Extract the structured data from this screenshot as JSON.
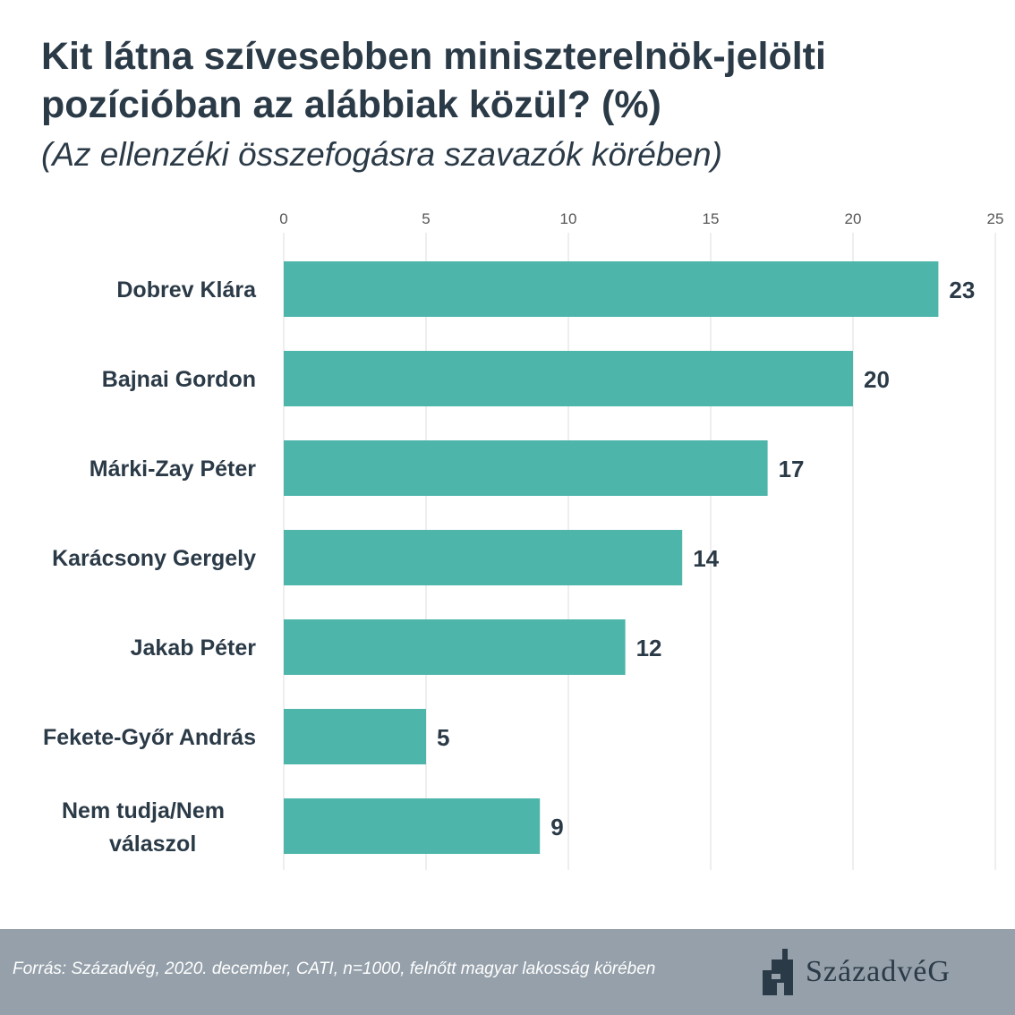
{
  "title": "Kit látna szívesebben miniszterelnök-jelölti pozícióban az alábbiak közül? (%)",
  "subtitle": "(Az ellenzéki összefogásra szavazók körében)",
  "footer": {
    "source": "Forrás: Századvég, 2020. december, CATI, n=1000, felnőtt magyar lakosság körében",
    "logo_text": "SzázadvéG",
    "logo_icon": "szazadveg-emblem-icon"
  },
  "colors": {
    "bar": "#4db5aa",
    "text": "#2b3a47",
    "grid": "#dddddd",
    "footer": "#95a0aa"
  },
  "chart_data": {
    "type": "bar",
    "orientation": "horizontal",
    "categories": [
      "Dobrev Klára",
      "Bajnai Gordon",
      "Márki-Zay Péter",
      "Karácsony Gergely",
      "Jakab Péter",
      "Fekete-Győr András",
      "Nem tudja/Nem válaszol"
    ],
    "values": [
      23,
      20,
      17,
      14,
      12,
      5,
      9
    ],
    "xlim": [
      0,
      25
    ],
    "xticks": [
      0,
      5,
      10,
      15,
      20,
      25
    ],
    "axis_position": "top",
    "grid": true,
    "legend": "none",
    "data_labels": true
  }
}
